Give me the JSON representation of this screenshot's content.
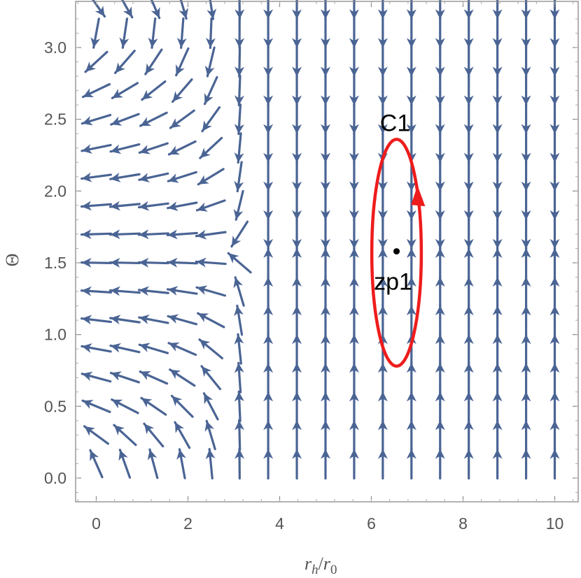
{
  "chart_data": {
    "type": "vector-field",
    "xlabel_main": "r",
    "xlabel_sub1": "h",
    "xlabel_slash": "/",
    "xlabel_main2": "r",
    "xlabel_sub2": "0",
    "ylabel": "Θ",
    "xlim": [
      -0.4,
      10.5
    ],
    "ylim": [
      -0.15,
      3.3
    ],
    "x_ticks": [
      0,
      2,
      4,
      6,
      8,
      10
    ],
    "y_ticks": [
      0.0,
      0.5,
      1.0,
      1.5,
      2.0,
      2.5,
      3.0
    ],
    "x_tick_labels": [
      "0",
      "2",
      "4",
      "6",
      "8",
      "10"
    ],
    "y_tick_labels": [
      "0.0",
      "0.5",
      "1.0",
      "1.5",
      "2.0",
      "2.5",
      "3.0"
    ],
    "grid": false,
    "arrow_color": "#4a6494",
    "contour": {
      "label": "C1",
      "center": [
        6.55,
        1.57
      ],
      "semi_axis_x": 0.9,
      "semi_axis_y": 0.79,
      "color": "#ee1c1c",
      "direction": "counterclockwise"
    },
    "zero_point": {
      "label": "zp1",
      "x": 6.55,
      "y": 1.58
    }
  }
}
